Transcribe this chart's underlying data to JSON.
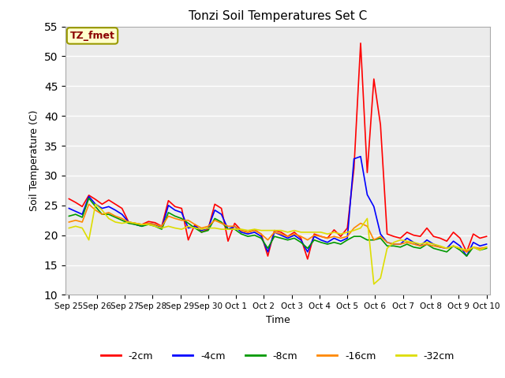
{
  "title": "Tonzi Soil Temperatures Set C",
  "xlabel": "Time",
  "ylabel": "Soil Temperature (C)",
  "ylim": [
    10,
    55
  ],
  "yticks": [
    10,
    15,
    20,
    25,
    30,
    35,
    40,
    45,
    50,
    55
  ],
  "annotation_label": "TZ_fmet",
  "annotation_color": "#8B0000",
  "annotation_bg": "#FFFFCC",
  "fig_bg": "#FFFFFF",
  "plot_bg": "#EBEBEB",
  "grid_color": "#FFFFFF",
  "series_colors": {
    "-2cm": "#FF0000",
    "-4cm": "#0000FF",
    "-8cm": "#009900",
    "-16cm": "#FF8800",
    "-32cm": "#DDDD00"
  },
  "x_labels": [
    "Sep 25",
    "Sep 26",
    "Sep 27",
    "Sep 28",
    "Sep 29",
    "Sep 30",
    "Oct 1",
    "Oct 2",
    "Oct 3",
    "Oct 4",
    "Oct 5",
    "Oct 6",
    "Oct 7",
    "Oct 8",
    "Oct 9",
    "Oct 10"
  ],
  "data": {
    "-2cm": [
      26.1,
      25.5,
      24.8,
      26.7,
      26.0,
      25.2,
      25.9,
      25.2,
      24.5,
      22.2,
      22.0,
      21.8,
      22.3,
      22.1,
      21.5,
      25.8,
      24.8,
      24.5,
      19.2,
      21.8,
      20.5,
      21.0,
      25.2,
      24.5,
      19.0,
      22.0,
      20.8,
      20.5,
      20.9,
      20.2,
      16.5,
      20.8,
      20.5,
      19.8,
      20.5,
      19.5,
      16.0,
      20.2,
      19.8,
      19.5,
      20.9,
      19.8,
      21.2,
      31.2,
      52.2,
      30.5,
      46.2,
      38.5,
      20.2,
      19.8,
      19.5,
      20.5,
      20.0,
      19.8,
      21.2,
      19.8,
      19.5,
      19.0,
      20.5,
      19.5,
      17.2,
      20.2,
      19.5,
      19.8
    ],
    "-4cm": [
      24.5,
      24.0,
      23.5,
      26.5,
      25.2,
      24.5,
      24.8,
      24.2,
      23.5,
      22.2,
      21.8,
      21.5,
      22.0,
      21.8,
      21.2,
      25.0,
      24.2,
      23.8,
      21.2,
      21.5,
      20.8,
      21.2,
      24.2,
      23.5,
      21.0,
      21.5,
      20.5,
      20.2,
      20.5,
      19.8,
      17.2,
      20.5,
      20.0,
      19.5,
      20.0,
      19.2,
      17.2,
      19.8,
      19.2,
      18.8,
      19.5,
      19.0,
      19.5,
      32.8,
      33.2,
      26.8,
      24.8,
      20.2,
      18.8,
      18.5,
      18.5,
      19.5,
      18.8,
      18.2,
      19.2,
      18.5,
      18.0,
      17.8,
      19.0,
      18.2,
      16.5,
      18.8,
      18.2,
      18.5
    ],
    "-8cm": [
      23.2,
      23.5,
      23.0,
      26.2,
      24.8,
      23.5,
      23.5,
      23.0,
      22.5,
      22.0,
      21.8,
      21.5,
      21.8,
      21.5,
      21.0,
      23.8,
      23.2,
      22.8,
      22.0,
      21.2,
      20.5,
      20.8,
      22.8,
      22.2,
      21.0,
      21.0,
      20.2,
      19.8,
      20.0,
      19.5,
      17.8,
      19.8,
      19.5,
      19.2,
      19.5,
      18.8,
      17.8,
      19.2,
      18.8,
      18.5,
      18.8,
      18.5,
      19.2,
      19.8,
      19.8,
      19.2,
      19.2,
      19.5,
      18.2,
      18.2,
      18.0,
      18.5,
      18.0,
      17.8,
      18.5,
      17.8,
      17.5,
      17.2,
      18.2,
      17.5,
      16.5,
      18.0,
      17.5,
      17.8
    ],
    "-16cm": [
      22.2,
      22.5,
      22.2,
      25.2,
      24.2,
      23.5,
      23.8,
      23.2,
      22.8,
      22.2,
      22.0,
      21.8,
      22.0,
      21.8,
      21.5,
      23.2,
      22.8,
      22.5,
      22.5,
      21.8,
      21.2,
      21.5,
      22.5,
      22.0,
      21.5,
      21.5,
      20.8,
      20.5,
      20.8,
      20.2,
      19.2,
      20.5,
      20.2,
      19.8,
      20.2,
      19.8,
      19.2,
      20.0,
      19.8,
      19.5,
      19.8,
      19.5,
      19.8,
      21.2,
      22.0,
      21.5,
      19.2,
      19.8,
      18.8,
      18.5,
      18.5,
      18.8,
      18.5,
      18.2,
      18.5,
      18.2,
      18.0,
      17.8,
      18.2,
      17.8,
      17.2,
      18.0,
      17.8,
      18.0
    ],
    "-32cm": [
      21.2,
      21.5,
      21.2,
      19.2,
      25.2,
      24.2,
      22.8,
      22.2,
      22.0,
      22.2,
      22.0,
      21.8,
      21.8,
      21.5,
      21.2,
      21.5,
      21.2,
      21.0,
      21.5,
      21.2,
      21.0,
      21.2,
      21.2,
      21.0,
      21.0,
      21.0,
      21.0,
      20.8,
      21.0,
      20.8,
      20.8,
      20.8,
      20.8,
      20.5,
      20.8,
      20.5,
      20.5,
      20.5,
      20.5,
      20.2,
      20.5,
      20.2,
      20.5,
      20.8,
      21.2,
      22.8,
      11.8,
      12.8,
      17.8,
      18.8,
      19.2,
      19.0,
      18.8,
      18.5,
      18.8,
      18.5,
      18.2,
      17.8,
      18.2,
      17.8,
      17.5,
      18.0,
      17.5,
      18.0
    ]
  }
}
